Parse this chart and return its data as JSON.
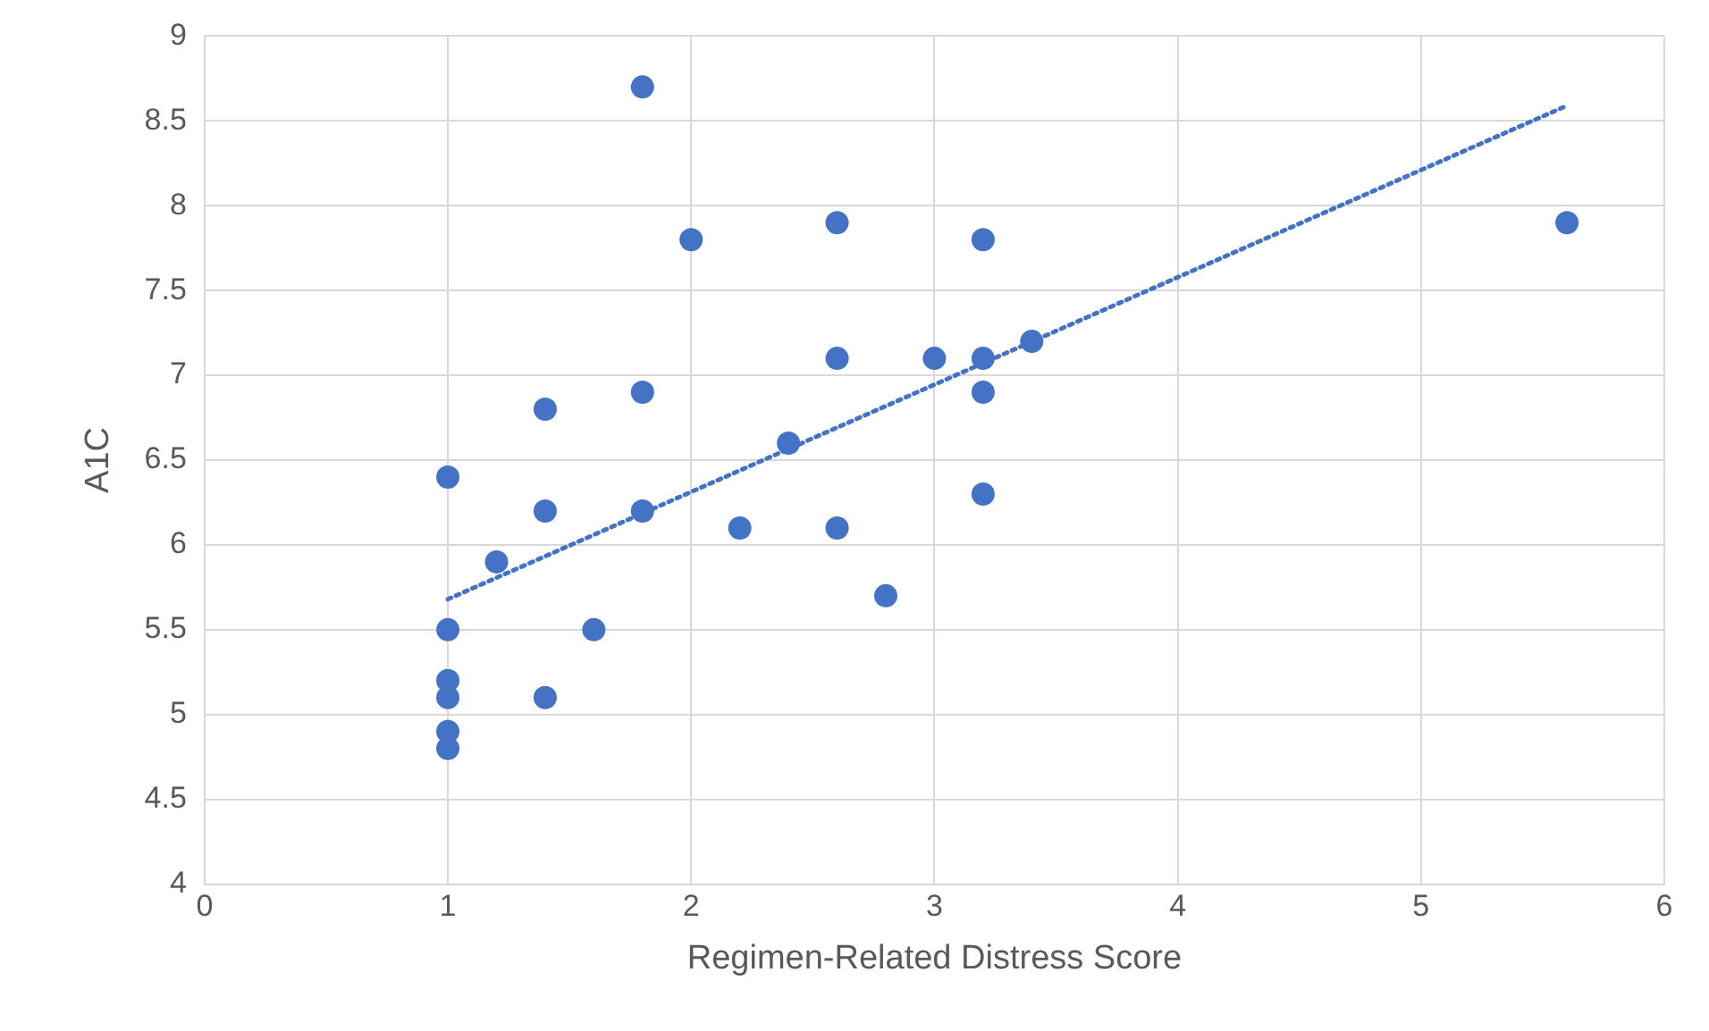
{
  "chart_data": {
    "type": "scatter",
    "xlabel": "Regimen-Related Distress Score",
    "ylabel": "A1C",
    "xlim": [
      0,
      6
    ],
    "xticks": [
      0,
      1,
      2,
      3,
      4,
      5,
      6
    ],
    "ylim": [
      4,
      9
    ],
    "yticks": [
      4,
      4.5,
      5,
      5.5,
      6,
      6.5,
      7,
      7.5,
      8,
      8.5,
      9
    ],
    "grid": true,
    "legend": false,
    "marker": "circle",
    "series": [
      {
        "color": "#4472c4",
        "x": [
          1,
          1,
          1,
          1,
          1,
          1,
          1.2,
          1.4,
          1.4,
          1.4,
          1.6,
          1.8,
          1.8,
          1.8,
          2,
          2.2,
          2.4,
          2.6,
          2.6,
          2.6,
          2.8,
          3,
          3.2,
          3.2,
          3.2,
          3.2,
          3.4,
          5.6
        ],
        "values": [
          6.4,
          5.5,
          5.2,
          5.1,
          4.9,
          4.8,
          5.9,
          6.8,
          6.2,
          5.1,
          5.5,
          8.7,
          6.9,
          6.2,
          7.8,
          6.1,
          6.6,
          7.9,
          7.1,
          6.1,
          5.7,
          7.1,
          7.8,
          7.1,
          6.9,
          6.3,
          7.2,
          7.9
        ]
      },
      {
        "type": "line",
        "color": "#4472c4",
        "marker": "none",
        "line_style": "dotted",
        "x": [
          1,
          5.6
        ],
        "values": [
          5.68,
          8.59
        ]
      }
    ]
  }
}
